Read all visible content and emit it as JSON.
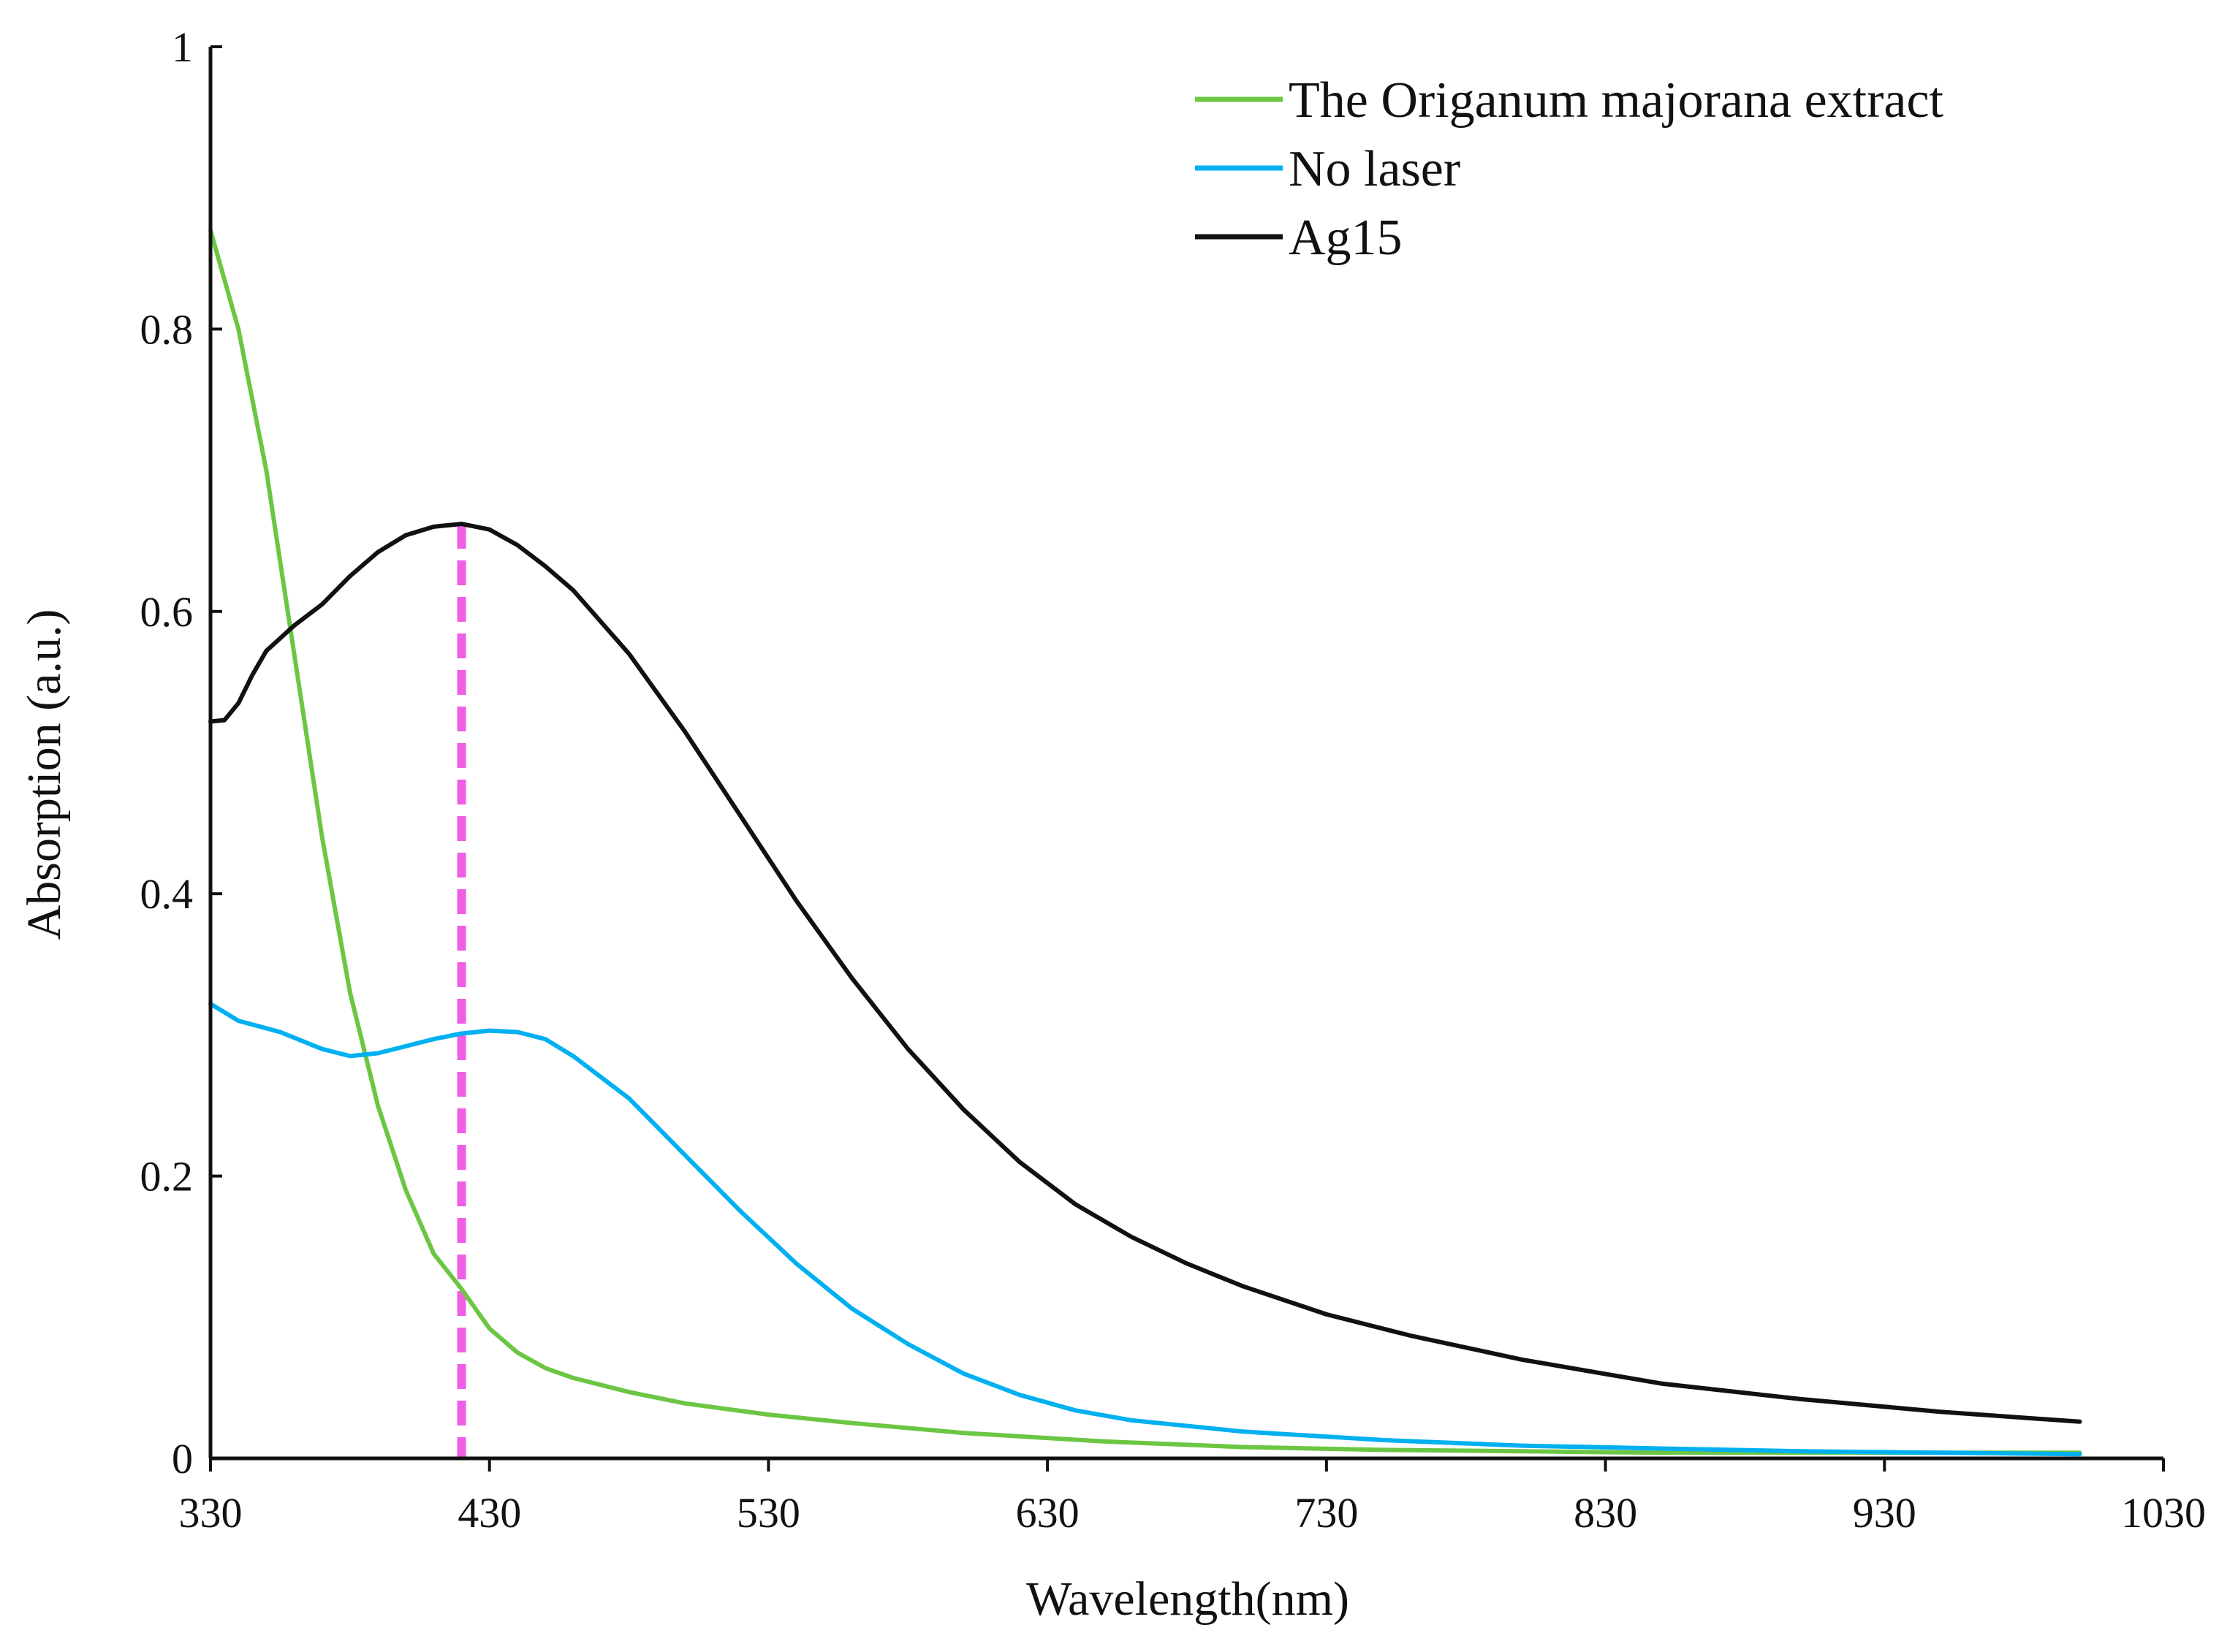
{
  "chart_data": {
    "type": "line",
    "title": "",
    "xlabel": "Wavelength(nm)",
    "ylabel": "Absorption (a.u.)",
    "xlim": [
      330,
      1030
    ],
    "ylim": [
      0,
      1
    ],
    "xticks": [
      330,
      430,
      530,
      630,
      730,
      830,
      930,
      1030
    ],
    "yticks": [
      0,
      0.2,
      0.4,
      0.6,
      0.8,
      1
    ],
    "xtick_labels": [
      "330",
      "430",
      "530",
      "630",
      "730",
      "830",
      "930",
      "1030"
    ],
    "ytick_labels": [
      "0",
      "0.2",
      "0.4",
      "0.6",
      "0.8",
      "1"
    ],
    "grid": false,
    "legend_position": "top-right",
    "series": [
      {
        "name": "The Origanum majorana extract",
        "color": "#6cc644",
        "x": [
          330,
          340,
          350,
          360,
          370,
          380,
          390,
          400,
          410,
          420,
          430,
          440,
          450,
          460,
          480,
          500,
          530,
          560,
          600,
          650,
          700,
          750,
          800,
          850,
          900,
          950,
          1000
        ],
        "y": [
          0.87,
          0.8,
          0.7,
          0.57,
          0.44,
          0.33,
          0.25,
          0.19,
          0.145,
          0.12,
          0.092,
          0.075,
          0.064,
          0.057,
          0.047,
          0.039,
          0.031,
          0.025,
          0.018,
          0.012,
          0.008,
          0.006,
          0.005,
          0.004,
          0.004,
          0.004,
          0.004
        ]
      },
      {
        "name": "No laser",
        "color": "#00b0f0",
        "x": [
          330,
          340,
          355,
          370,
          380,
          390,
          400,
          410,
          420,
          430,
          440,
          450,
          460,
          480,
          500,
          520,
          540,
          560,
          580,
          600,
          620,
          640,
          660,
          700,
          750,
          800,
          850,
          900,
          950,
          1000
        ],
        "y": [
          0.322,
          0.31,
          0.302,
          0.29,
          0.285,
          0.287,
          0.292,
          0.297,
          0.301,
          0.303,
          0.302,
          0.297,
          0.285,
          0.255,
          0.215,
          0.175,
          0.138,
          0.106,
          0.081,
          0.06,
          0.045,
          0.034,
          0.027,
          0.019,
          0.013,
          0.009,
          0.007,
          0.005,
          0.004,
          0.003
        ]
      },
      {
        "name": "Ag15",
        "color": "#111111",
        "x": [
          330,
          335,
          340,
          345,
          350,
          360,
          370,
          380,
          390,
          400,
          410,
          420,
          430,
          440,
          450,
          460,
          480,
          500,
          520,
          540,
          560,
          580,
          600,
          620,
          640,
          660,
          680,
          700,
          730,
          760,
          800,
          850,
          900,
          950,
          1000
        ],
        "y": [
          0.522,
          0.523,
          0.535,
          0.555,
          0.572,
          0.59,
          0.605,
          0.625,
          0.642,
          0.654,
          0.66,
          0.662,
          0.658,
          0.647,
          0.632,
          0.615,
          0.57,
          0.515,
          0.455,
          0.395,
          0.34,
          0.29,
          0.247,
          0.21,
          0.18,
          0.157,
          0.138,
          0.122,
          0.102,
          0.087,
          0.07,
          0.053,
          0.042,
          0.033,
          0.026
        ]
      }
    ],
    "reference_line": {
      "x": 420,
      "y_top": 0.662,
      "color": "#f05de6",
      "style": "dashed"
    }
  }
}
